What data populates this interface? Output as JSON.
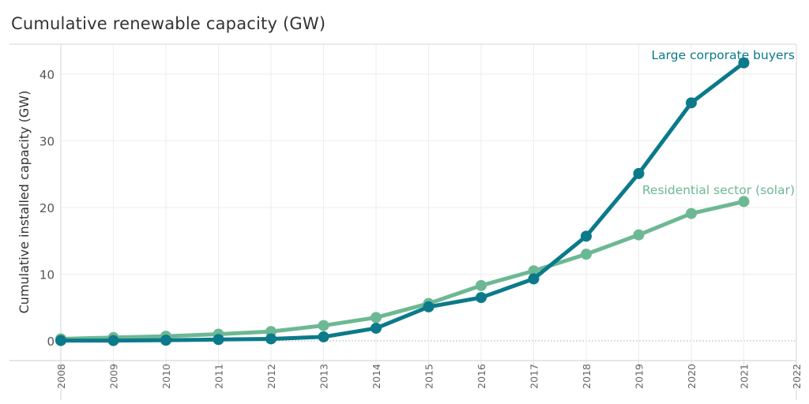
{
  "chart_data": {
    "type": "line",
    "title": "Cumulative renewable capacity (GW)",
    "xlabel": "",
    "ylabel": "Cumulative installed capacity (GW)",
    "x": [
      2008,
      2009,
      2010,
      2011,
      2012,
      2013,
      2014,
      2015,
      2016,
      2017,
      2018,
      2019,
      2020,
      2021
    ],
    "x_ticks": [
      "2008",
      "2009",
      "2010",
      "2011",
      "2012",
      "2013",
      "2014",
      "2015",
      "2016",
      "2017",
      "2018",
      "2019",
      "2020",
      "2021",
      "2022"
    ],
    "xlim": [
      2008,
      2022
    ],
    "ylim": [
      -3,
      44
    ],
    "y_ticks": [
      0,
      10,
      20,
      30,
      40
    ],
    "grid": true,
    "series": [
      {
        "name": "Residential sector (solar)",
        "color": "#6db894",
        "values": [
          0.3,
          0.5,
          0.7,
          1.0,
          1.4,
          2.3,
          3.5,
          5.6,
          8.3,
          10.5,
          13.0,
          15.9,
          19.1,
          20.9
        ]
      },
      {
        "name": "Large corporate buyers",
        "color": "#0b7a8a",
        "values": [
          0.05,
          0.05,
          0.1,
          0.2,
          0.3,
          0.6,
          1.9,
          5.1,
          6.5,
          9.3,
          15.7,
          25.1,
          35.7,
          41.7
        ]
      }
    ],
    "legend": "inline-labels-right"
  }
}
